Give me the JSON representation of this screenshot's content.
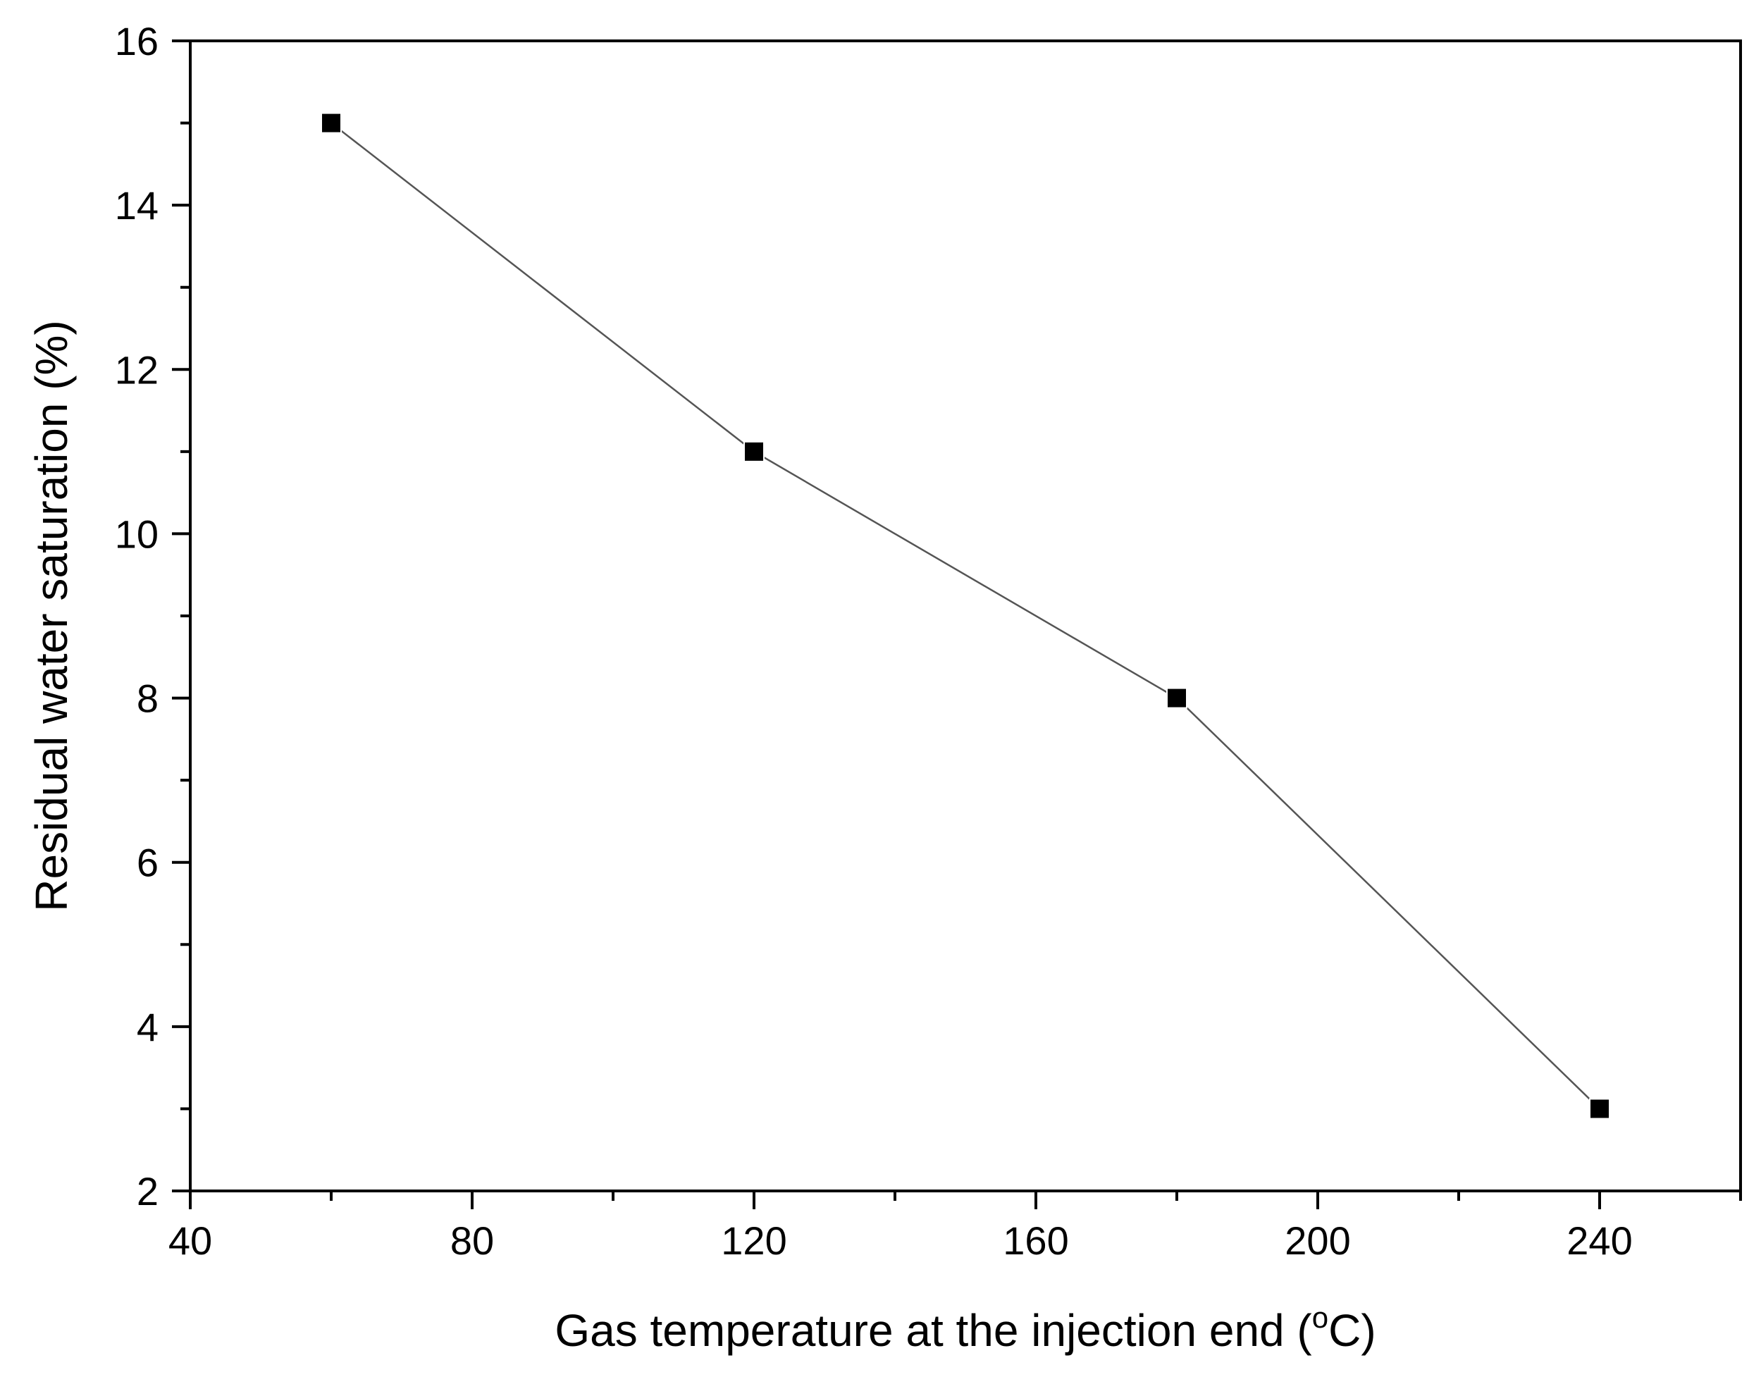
{
  "chart_data": {
    "type": "line",
    "title": "",
    "xlabel": "Gas temperature at the injection end (",
    "xlabel_superscript": "o",
    "xlabel_unit": "C)",
    "ylabel": "Residual water saturation (%)",
    "xlim": [
      40,
      260
    ],
    "ylim": [
      2,
      16
    ],
    "x_ticks": [
      40,
      80,
      120,
      160,
      200,
      240
    ],
    "x_minor_ticks": [
      60,
      100,
      140,
      180,
      220,
      260
    ],
    "y_ticks": [
      2,
      4,
      6,
      8,
      10,
      12,
      14,
      16
    ],
    "y_minor_ticks": [
      3,
      5,
      7,
      9,
      11,
      13,
      15
    ],
    "grid": false,
    "legend": "none",
    "series": [
      {
        "x": [
          60,
          120,
          180,
          240
        ],
        "y": [
          15,
          11,
          8,
          3
        ],
        "marker": "square",
        "color": "#000000",
        "line_color": "#555555"
      }
    ]
  }
}
